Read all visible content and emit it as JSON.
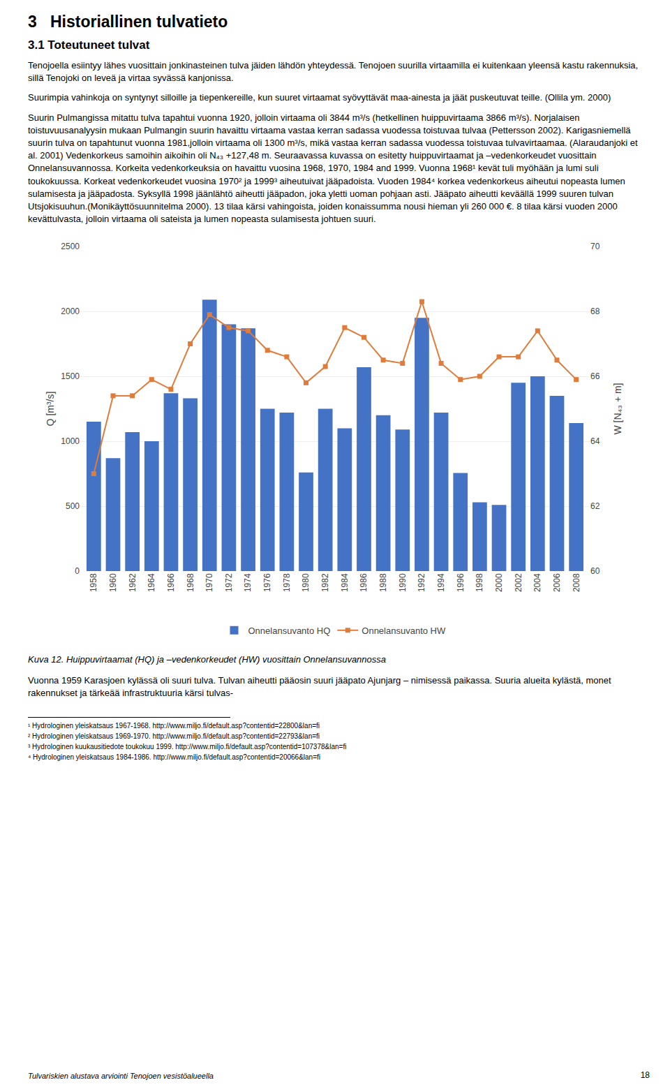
{
  "chart_data": {
    "type": "bar",
    "title": "3   Historiallinen tulvatieto",
    "subtitle": "3.1 Toteutuneet tulvat",
    "annotations": [
      "Tenojoella esiintyy lähes vuosittain jonkinasteinen tulva jäiden lähdön yhteydessä. Tenojoen suurilla virtaamilla ei kuitenkaan yleensä kastu rakennuksia, sillä Tenojoki on leveä ja virtaa syvässä kanjonissa.",
      "Suurimpia vahinkoja on syntynyt silloille ja tiepenkereille, kun suuret virtaamat syövyttävät maa-ainesta ja jäät puskeutuvat teille. (Ollila ym. 2000)",
      "Suurin Pulmangissa mitattu tulva tapahtui vuonna 1920, jolloin virtaama oli 3844 m³/s (hetkellinen huippuvirtaama 3866 m³/s). Norjalaisen toistuvuusanalyysin mukaan Pulmangin suurin havaittu virtaama vastaa kerran sadassa vuodessa toistuvaa tulvaa (Pettersson 2002). Karigasniemellä suurin tulva on tapahtunut vuonna 1981,jolloin virtaama oli 1300 m³/s, mikä vastaa kerran sadassa vuodessa toistuvaa tulvavirtaamaa. (Alaraudanjoki et al. 2001) Vedenkorkeus samoihin aikoihin oli N₄₃ +127,48 m. Seuraavassa kuvassa on esitetty huippuvirtaamat ja –vedenkorkeudet vuosittain Onnelansuvannossa. Korkeita vedenkorkeuksia on havaittu vuosina 1968, 1970, 1984 and 1999. Vuonna 1968¹ kevät tuli myöhään ja lumi suli toukokuussa. Korkeat vedenkorkeudet vuosina 1970² ja 1999³ aiheutuivat jääpadoista. Vuoden 1984⁴ korkea vedenkorkeus aiheutui nopeasta lumen sulamisesta ja jääpadosta. Syksyllä 1998 jäänlähtö aiheutti jääpadon, joka yletti uoman pohjaan asti. Jääpato aiheutti keväällä 1999 suuren tulvan Utsjokisuuhun.(Monikäyttösuunnitelma 2000). 13 tilaa kärsi vahingoista, joiden konaissumma nousi hieman yli 260 000 €. 8 tilaa kärsi vuoden 2000 kevättulvasta, jolloin virtaama oli sateista ja lumen nopeasta sulamisesta johtuen suuri.",
      "Kuva 12. Huippuvirtaamat (HQ) ja –vedenkorkeudet (HW) vuosittain Onnelansuvannossa",
      "Vuonna 1959 Karasjoen kylässä oli suuri tulva. Tulvan aiheutti pääosin suuri jääpato Ajunjarg – nimisessä paikassa. Suuria alueita kylästä, monet rakennukset ja tärkeää infrastruktuuria kärsi tulvas-",
      "¹ Hydrologinen yleiskatsaus 1967-1968. http://www.miljo.fi/default.asp?contentid=22800&lan=fi",
      "² Hydrologinen yleiskatsaus 1969-1970. http://www.miljo.fi/default.asp?contentid=22793&lan=fi",
      "³ Hydrologinen kuukausitiedote toukokuu 1999. http://www.miljo.fi/default.asp?contentid=107378&lan=fi",
      "⁴ Hydrologinen yleiskatsaus 1984-1986. http://www.miljo.fi/default.asp?contentid=20066&lan=fi",
      "Tulvariskien alustava arviointi Tenojoen vesistöalueella",
      "18"
    ],
    "categories": [
      1958,
      1960,
      1962,
      1964,
      1966,
      1968,
      1970,
      1972,
      1974,
      1976,
      1978,
      1980,
      1982,
      1984,
      1986,
      1988,
      1990,
      1992,
      1994,
      1996,
      1998,
      2000,
      2002,
      2004,
      2006,
      2008
    ],
    "series": [
      {
        "name": "Onnelansuvanto HQ",
        "type": "bar",
        "color": "#4472C4",
        "values": [
          1150,
          870,
          1070,
          1000,
          1370,
          1330,
          2090,
          1900,
          1870,
          1250,
          1220,
          760,
          1250,
          1100,
          1570,
          1200,
          1090,
          1950,
          1220,
          755,
          530,
          510,
          1450,
          1500,
          1350,
          1140
        ]
      },
      {
        "name": "Onnelansuvanto HW",
        "type": "line",
        "axis": "y2",
        "color": "#E07B39",
        "marker": "square",
        "line_style": "solid",
        "values": [
          63.0,
          65.4,
          65.4,
          65.9,
          65.6,
          67.0,
          67.9,
          67.5,
          67.4,
          66.8,
          66.6,
          65.8,
          66.3,
          67.5,
          67.2,
          66.5,
          66.4,
          68.3,
          66.4,
          65.9,
          66.0,
          66.6,
          66.6,
          67.4,
          66.5,
          65.9
        ]
      }
    ],
    "ylabel": "Q [m³/s]",
    "y2label": "W [N₄₃ + m]",
    "ylim": [
      0,
      2500
    ],
    "yticks": [
      0,
      500,
      1000,
      1500,
      2000,
      2500
    ],
    "y2lim": [
      60,
      70
    ],
    "y2ticks": [
      60,
      62,
      64,
      66,
      68,
      70
    ],
    "grid": true,
    "legend": "bottom"
  }
}
